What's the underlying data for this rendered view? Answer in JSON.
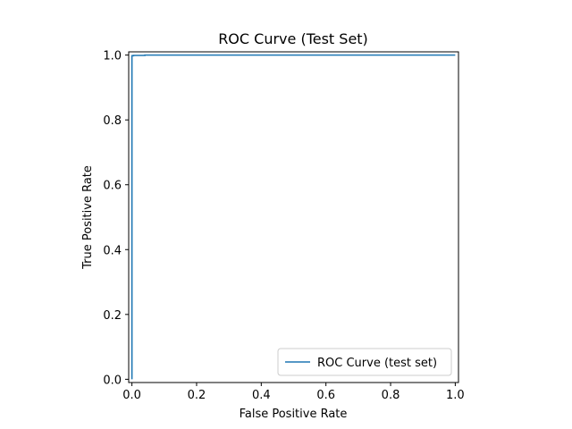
{
  "chart_data": {
    "type": "line",
    "title": "ROC Curve (Test Set)",
    "xlabel": "False Positive Rate",
    "ylabel": "True Positive Rate",
    "xlim": [
      -0.01,
      1.01
    ],
    "ylim": [
      -0.01,
      1.01
    ],
    "xticks": [
      0.0,
      0.2,
      0.4,
      0.6,
      0.8,
      1.0
    ],
    "xtick_labels": [
      "0.0",
      "0.2",
      "0.4",
      "0.6",
      "0.8",
      "1.0"
    ],
    "yticks": [
      0.0,
      0.2,
      0.4,
      0.6,
      0.8,
      1.0
    ],
    "ytick_labels": [
      "0.0",
      "0.2",
      "0.4",
      "0.6",
      "0.8",
      "1.0"
    ],
    "grid": false,
    "legend_position": "lower-right",
    "series": [
      {
        "name": "ROC Curve (test set)",
        "color": "#1f77b4",
        "x": [
          0.0,
          0.0,
          0.005,
          0.005,
          0.04,
          0.04,
          1.0
        ],
        "y": [
          0.0,
          0.998,
          0.998,
          0.999,
          0.999,
          1.0,
          1.0
        ]
      }
    ]
  }
}
